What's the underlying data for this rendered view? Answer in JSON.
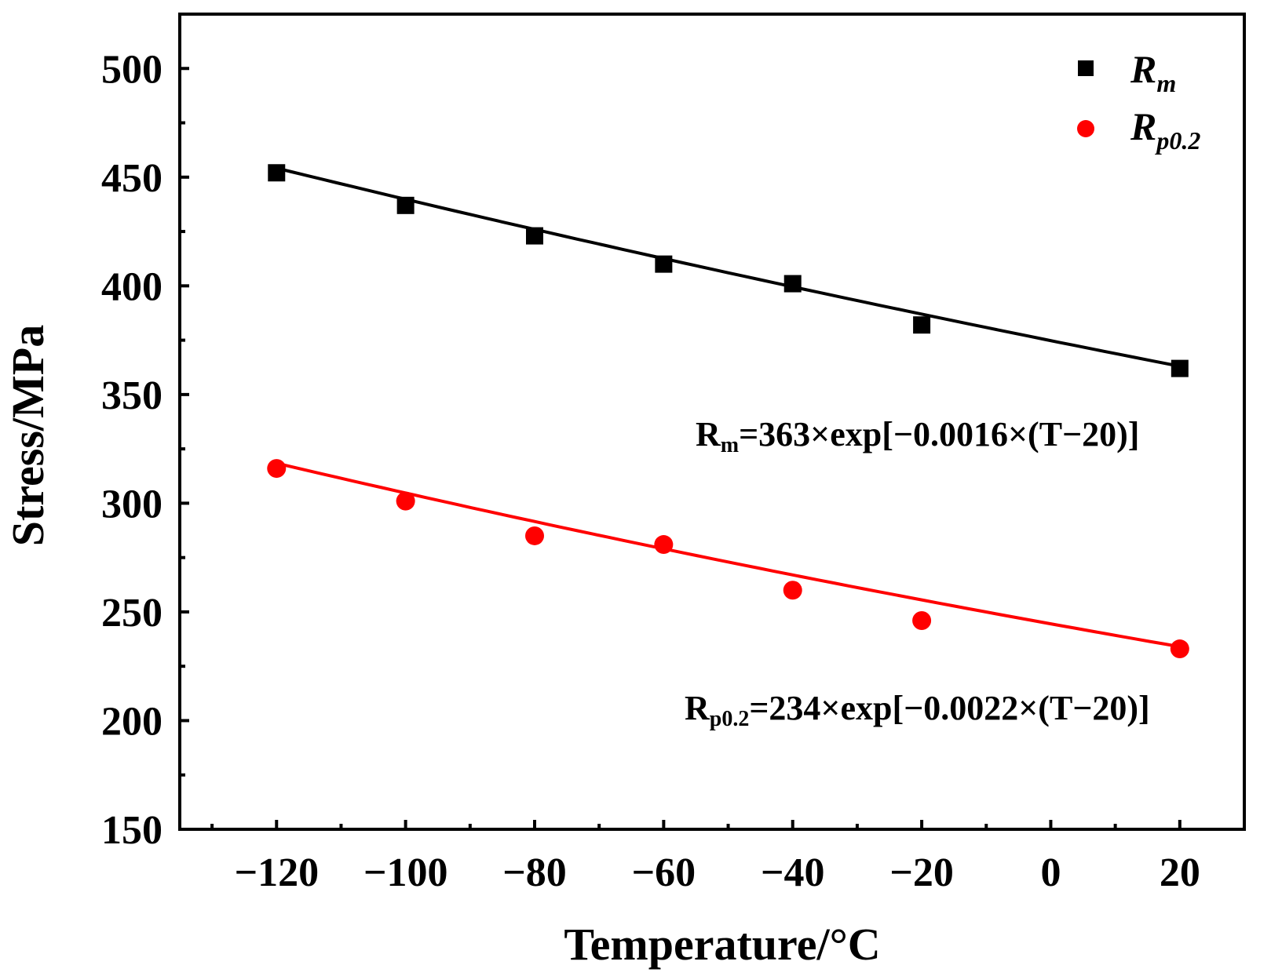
{
  "chart_data": {
    "type": "scatter",
    "xlabel": "Temperature/°C",
    "ylabel": "Stress/MPa",
    "xlim": [
      -135,
      30
    ],
    "ylim": [
      150,
      525
    ],
    "x_ticks": [
      -120,
      -100,
      -80,
      -60,
      -40,
      -20,
      0,
      20
    ],
    "x_tick_labels": [
      "−120",
      "−100",
      "−80",
      "−60",
      "−40",
      "−20",
      "0",
      "20"
    ],
    "x_minor_ticks": [
      -130,
      -110,
      -90,
      -70,
      -50,
      -30,
      -10,
      10
    ],
    "y_ticks": [
      150,
      200,
      250,
      300,
      350,
      400,
      450,
      500
    ],
    "y_tick_labels": [
      "150",
      "200",
      "250",
      "300",
      "350",
      "400",
      "450",
      "500"
    ],
    "y_minor_ticks": [
      175,
      225,
      275,
      325,
      375,
      425,
      475
    ],
    "grid": false,
    "legend_position": "top-right",
    "series": [
      {
        "name": "Rm",
        "legend_main": "R",
        "legend_sub": "m",
        "marker": "square",
        "color": "#000000",
        "x": [
          -120,
          -100,
          -80,
          -60,
          -40,
          -20,
          20
        ],
        "y": [
          452,
          437,
          423,
          410,
          401,
          382,
          362
        ],
        "fit": {
          "a": 363,
          "b": -0.0016,
          "t0": 20,
          "x_range": [
            -120,
            20
          ],
          "eq_main": "R",
          "eq_sub": "m",
          "eq_rest": "=363×exp[−0.0016×(T−20)]"
        }
      },
      {
        "name": "Rp0.2",
        "legend_main": "R",
        "legend_sub": "p0.2",
        "marker": "circle",
        "color": "#ff0000",
        "x": [
          -120,
          -100,
          -80,
          -60,
          -40,
          -20,
          20
        ],
        "y": [
          316,
          301,
          285,
          281,
          260,
          246,
          233
        ],
        "fit": {
          "a": 234,
          "b": -0.0022,
          "t0": 20,
          "x_range": [
            -120,
            20
          ],
          "eq_main": "R",
          "eq_sub": "p0.2",
          "eq_rest": "=234×exp[−0.0022×(T−20)]"
        }
      }
    ]
  }
}
